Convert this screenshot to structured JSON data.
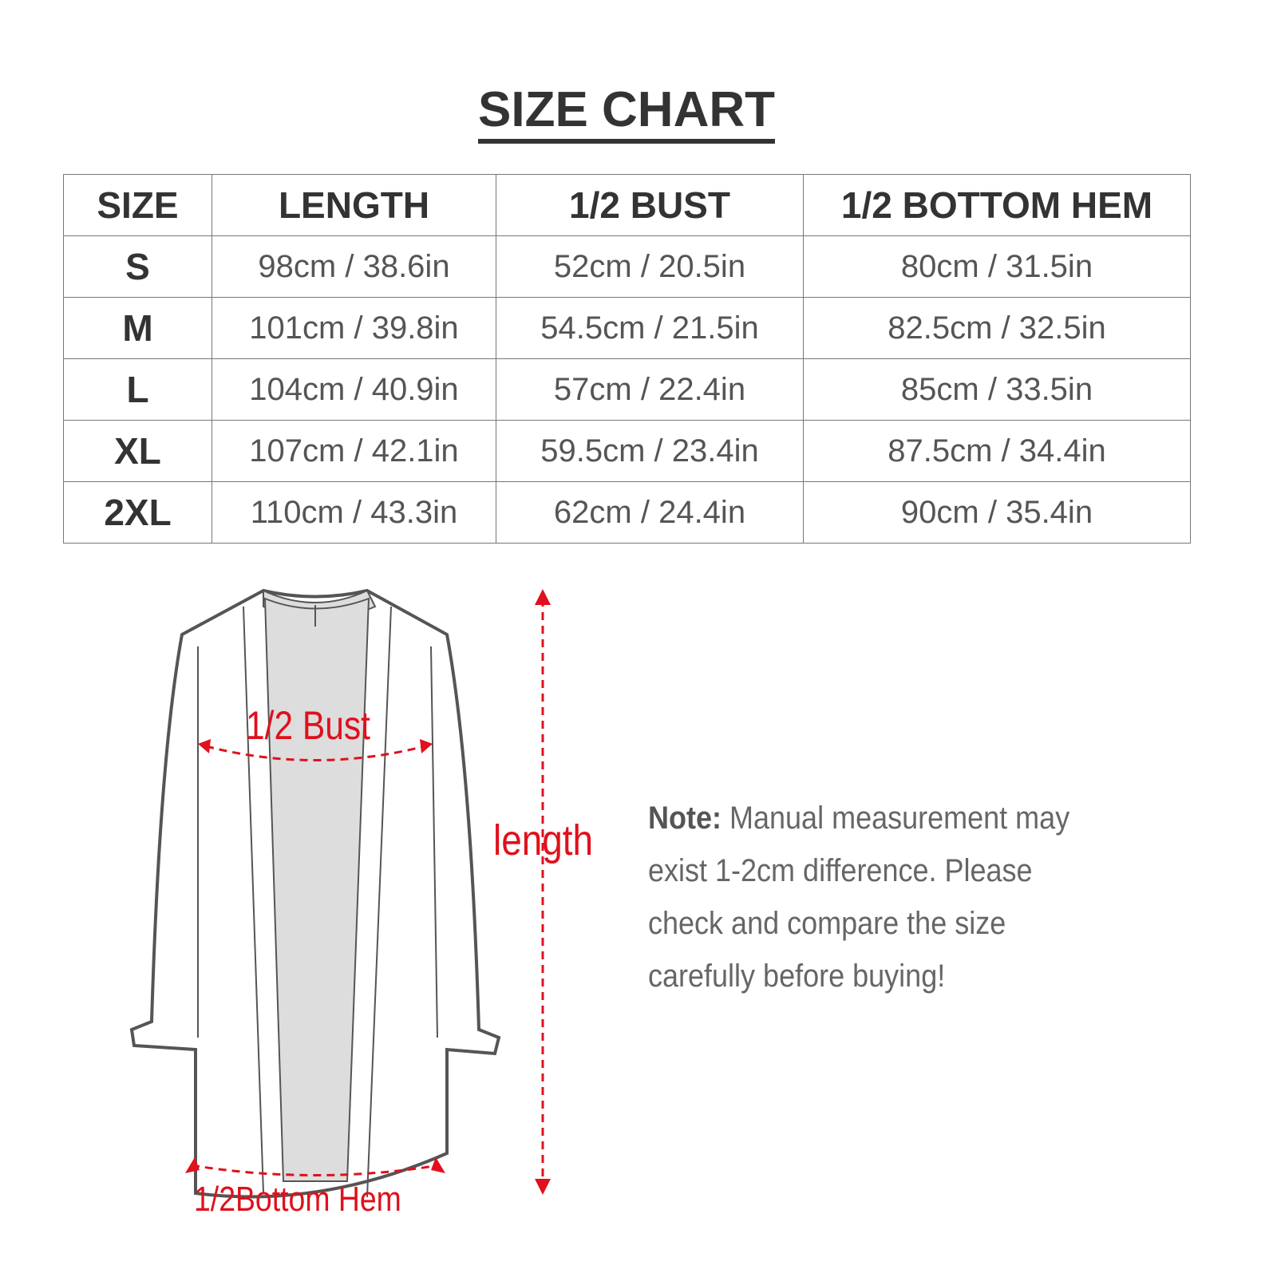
{
  "title": "SIZE CHART",
  "table": {
    "headers": [
      "SIZE",
      "LENGTH",
      "1/2 BUST",
      "1/2 BOTTOM HEM"
    ],
    "rows": [
      [
        "S",
        "98cm / 38.6in",
        "52cm / 20.5in",
        "80cm / 31.5in"
      ],
      [
        "M",
        "101cm / 39.8in",
        "54.5cm / 21.5in",
        "82.5cm / 32.5in"
      ],
      [
        "L",
        "104cm / 40.9in",
        "57cm / 22.4in",
        "85cm / 33.5in"
      ],
      [
        "XL",
        "107cm / 42.1in",
        "59.5cm / 23.4in",
        "87.5cm / 34.4in"
      ],
      [
        "2XL",
        "110cm / 43.3in",
        "62cm / 24.4in",
        "90cm / 35.4in"
      ]
    ]
  },
  "diagram": {
    "bust_label": "1/2 Bust",
    "length_label": "length",
    "hem_label": "1/2Bottom Hem",
    "accent_color": "#e0101c"
  },
  "note": {
    "label": "Note:",
    "text": "Manual measurement may exist 1-2cm difference. Please check and compare the size carefully before buying!"
  }
}
